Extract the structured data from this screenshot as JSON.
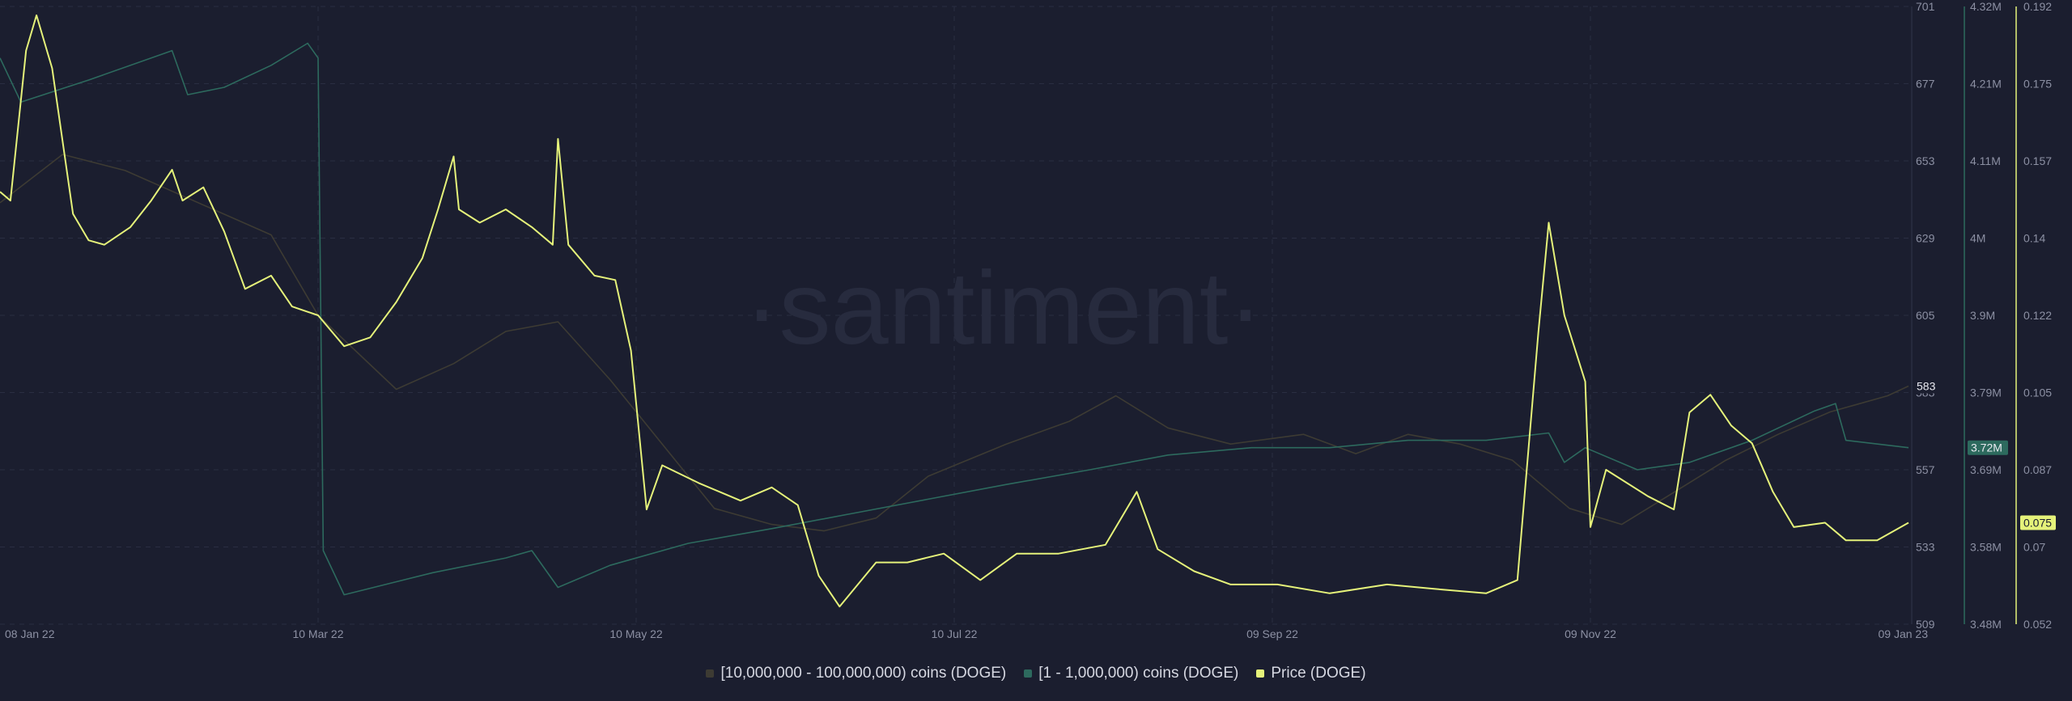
{
  "watermark": "·santiment·",
  "chart_data": {
    "type": "line",
    "x_ticks": [
      "08 Jan 22",
      "10 Mar 22",
      "10 May 22",
      "10 Jul 22",
      "09 Sep 22",
      "09 Nov 22",
      "09 Jan 23"
    ],
    "x_range": [
      "2022-01-08",
      "2023-01-09"
    ],
    "axes": {
      "left_count": {
        "range": [
          509,
          701
        ],
        "ticks": [
          "701",
          "677",
          "653",
          "629",
          "605",
          "583",
          "557",
          "533",
          "509"
        ],
        "current_label": "583"
      },
      "addresses": {
        "range": [
          3.48,
          4.32
        ],
        "unit": "M",
        "ticks": [
          "4.32M",
          "4.21M",
          "4.11M",
          "4M",
          "3.9M",
          "3.79M",
          "3.69M",
          "3.58M",
          "3.48M"
        ],
        "current_label": "3.72M"
      },
      "price": {
        "range": [
          0.052,
          0.192
        ],
        "ticks": [
          "0.192",
          "0.175",
          "0.157",
          "0.14",
          "0.122",
          "0.105",
          "0.087",
          "0.07",
          "0.052"
        ],
        "current_label": "0.075"
      }
    },
    "colors": {
      "whales": "#3d3b33",
      "addresses": "#2d6a5e",
      "price": "#e5f27a",
      "grid": "#2a2e42"
    },
    "series": [
      {
        "name": "[10,000,000 - 100,000,000) coins (DOGE)",
        "axis": "left_count",
        "points": [
          [
            "2022-01-08",
            640
          ],
          [
            "2022-01-20",
            655
          ],
          [
            "2022-02-01",
            650
          ],
          [
            "2022-02-15",
            640
          ],
          [
            "2022-03-01",
            630
          ],
          [
            "2022-03-10",
            605
          ],
          [
            "2022-03-25",
            582
          ],
          [
            "2022-04-05",
            590
          ],
          [
            "2022-04-15",
            600
          ],
          [
            "2022-04-25",
            603
          ],
          [
            "2022-05-05",
            585
          ],
          [
            "2022-05-15",
            565
          ],
          [
            "2022-05-25",
            545
          ],
          [
            "2022-06-05",
            540
          ],
          [
            "2022-06-15",
            538
          ],
          [
            "2022-06-25",
            542
          ],
          [
            "2022-07-05",
            555
          ],
          [
            "2022-07-20",
            565
          ],
          [
            "2022-08-01",
            572
          ],
          [
            "2022-08-10",
            580
          ],
          [
            "2022-08-20",
            570
          ],
          [
            "2022-09-01",
            565
          ],
          [
            "2022-09-15",
            568
          ],
          [
            "2022-09-25",
            562
          ],
          [
            "2022-10-05",
            568
          ],
          [
            "2022-10-15",
            565
          ],
          [
            "2022-10-25",
            560
          ],
          [
            "2022-11-05",
            545
          ],
          [
            "2022-11-15",
            540
          ],
          [
            "2022-11-25",
            550
          ],
          [
            "2022-12-05",
            560
          ],
          [
            "2022-12-15",
            568
          ],
          [
            "2022-12-25",
            575
          ],
          [
            "2023-01-05",
            580
          ],
          [
            "2023-01-09",
            583
          ]
        ]
      },
      {
        "name": "[1 - 1,000,000) coins (DOGE)",
        "axis": "addresses",
        "points": [
          [
            "2022-01-08",
            4.25
          ],
          [
            "2022-01-12",
            4.19
          ],
          [
            "2022-01-25",
            4.22
          ],
          [
            "2022-02-10",
            4.26
          ],
          [
            "2022-02-13",
            4.2
          ],
          [
            "2022-02-20",
            4.21
          ],
          [
            "2022-03-01",
            4.24
          ],
          [
            "2022-03-08",
            4.27
          ],
          [
            "2022-03-10",
            4.25
          ],
          [
            "2022-03-11",
            3.58
          ],
          [
            "2022-03-15",
            3.52
          ],
          [
            "2022-04-01",
            3.55
          ],
          [
            "2022-04-15",
            3.57
          ],
          [
            "2022-04-20",
            3.58
          ],
          [
            "2022-04-25",
            3.53
          ],
          [
            "2022-05-05",
            3.56
          ],
          [
            "2022-05-20",
            3.59
          ],
          [
            "2022-06-05",
            3.61
          ],
          [
            "2022-06-20",
            3.63
          ],
          [
            "2022-07-05",
            3.65
          ],
          [
            "2022-07-20",
            3.67
          ],
          [
            "2022-08-05",
            3.69
          ],
          [
            "2022-08-20",
            3.71
          ],
          [
            "2022-09-05",
            3.72
          ],
          [
            "2022-09-20",
            3.72
          ],
          [
            "2022-10-05",
            3.73
          ],
          [
            "2022-10-20",
            3.73
          ],
          [
            "2022-11-01",
            3.74
          ],
          [
            "2022-11-04",
            3.7
          ],
          [
            "2022-11-08",
            3.72
          ],
          [
            "2022-11-18",
            3.69
          ],
          [
            "2022-11-28",
            3.7
          ],
          [
            "2022-12-10",
            3.73
          ],
          [
            "2022-12-22",
            3.77
          ],
          [
            "2022-12-26",
            3.78
          ],
          [
            "2022-12-28",
            3.73
          ],
          [
            "2023-01-09",
            3.72
          ]
        ]
      },
      {
        "name": "Price (DOGE)",
        "axis": "price",
        "points": [
          [
            "2022-01-08",
            0.15
          ],
          [
            "2022-01-10",
            0.148
          ],
          [
            "2022-01-13",
            0.182
          ],
          [
            "2022-01-15",
            0.19
          ],
          [
            "2022-01-18",
            0.178
          ],
          [
            "2022-01-22",
            0.145
          ],
          [
            "2022-01-25",
            0.139
          ],
          [
            "2022-01-28",
            0.138
          ],
          [
            "2022-02-02",
            0.142
          ],
          [
            "2022-02-06",
            0.148
          ],
          [
            "2022-02-10",
            0.155
          ],
          [
            "2022-02-12",
            0.148
          ],
          [
            "2022-02-16",
            0.151
          ],
          [
            "2022-02-20",
            0.141
          ],
          [
            "2022-02-24",
            0.128
          ],
          [
            "2022-03-01",
            0.131
          ],
          [
            "2022-03-05",
            0.124
          ],
          [
            "2022-03-10",
            0.122
          ],
          [
            "2022-03-15",
            0.115
          ],
          [
            "2022-03-20",
            0.117
          ],
          [
            "2022-03-25",
            0.125
          ],
          [
            "2022-03-30",
            0.135
          ],
          [
            "2022-04-02",
            0.146
          ],
          [
            "2022-04-05",
            0.158
          ],
          [
            "2022-04-06",
            0.146
          ],
          [
            "2022-04-10",
            0.143
          ],
          [
            "2022-04-15",
            0.146
          ],
          [
            "2022-04-20",
            0.142
          ],
          [
            "2022-04-24",
            0.138
          ],
          [
            "2022-04-25",
            0.162
          ],
          [
            "2022-04-27",
            0.138
          ],
          [
            "2022-05-02",
            0.131
          ],
          [
            "2022-05-06",
            0.13
          ],
          [
            "2022-05-09",
            0.114
          ],
          [
            "2022-05-12",
            0.078
          ],
          [
            "2022-05-15",
            0.088
          ],
          [
            "2022-05-22",
            0.084
          ],
          [
            "2022-05-30",
            0.08
          ],
          [
            "2022-06-05",
            0.083
          ],
          [
            "2022-06-10",
            0.079
          ],
          [
            "2022-06-14",
            0.063
          ],
          [
            "2022-06-18",
            0.056
          ],
          [
            "2022-06-25",
            0.066
          ],
          [
            "2022-07-01",
            0.066
          ],
          [
            "2022-07-08",
            0.068
          ],
          [
            "2022-07-15",
            0.062
          ],
          [
            "2022-07-22",
            0.068
          ],
          [
            "2022-07-30",
            0.068
          ],
          [
            "2022-08-08",
            0.07
          ],
          [
            "2022-08-14",
            0.082
          ],
          [
            "2022-08-18",
            0.069
          ],
          [
            "2022-08-25",
            0.064
          ],
          [
            "2022-09-01",
            0.061
          ],
          [
            "2022-09-10",
            0.061
          ],
          [
            "2022-09-20",
            0.059
          ],
          [
            "2022-10-01",
            0.061
          ],
          [
            "2022-10-10",
            0.06
          ],
          [
            "2022-10-20",
            0.059
          ],
          [
            "2022-10-26",
            0.062
          ],
          [
            "2022-10-30",
            0.118
          ],
          [
            "2022-11-01",
            0.143
          ],
          [
            "2022-11-04",
            0.122
          ],
          [
            "2022-11-08",
            0.107
          ],
          [
            "2022-11-09",
            0.074
          ],
          [
            "2022-11-12",
            0.087
          ],
          [
            "2022-11-20",
            0.081
          ],
          [
            "2022-11-25",
            0.078
          ],
          [
            "2022-11-28",
            0.1
          ],
          [
            "2022-12-02",
            0.104
          ],
          [
            "2022-12-06",
            0.097
          ],
          [
            "2022-12-10",
            0.093
          ],
          [
            "2022-12-14",
            0.082
          ],
          [
            "2022-12-18",
            0.074
          ],
          [
            "2022-12-24",
            0.075
          ],
          [
            "2022-12-28",
            0.071
          ],
          [
            "2023-01-03",
            0.071
          ],
          [
            "2023-01-09",
            0.075
          ]
        ]
      }
    ]
  },
  "legend": [
    {
      "label": "[10,000,000 - 100,000,000) coins (DOGE)",
      "color": "#3d3b33"
    },
    {
      "label": "[1 - 1,000,000) coins (DOGE)",
      "color": "#2d6a5e"
    },
    {
      "label": "Price (DOGE)",
      "color": "#e5f27a"
    }
  ]
}
